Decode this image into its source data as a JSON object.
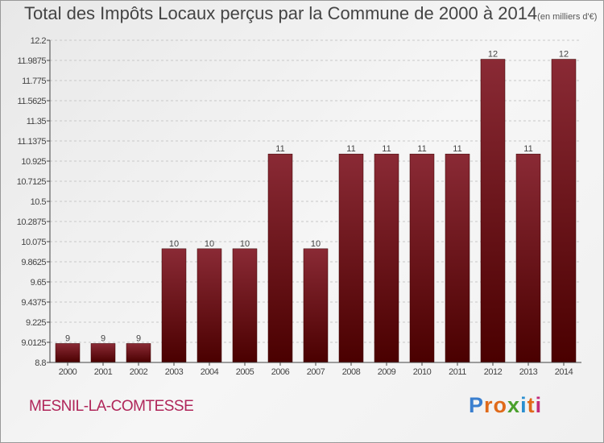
{
  "title": "Total des Impôts Locaux perçus par la Commune de 2000 à 2014",
  "title_unit": "(en milliers d'€)",
  "commune": "MESNIL-LA-COMTESSE",
  "logo": {
    "letters": [
      "P",
      "r",
      "o",
      "x",
      "i",
      "t",
      "i"
    ],
    "colors": [
      "#3a7fcf",
      "#e06a1a",
      "#e06a1a",
      "#4aa02c",
      "#2a8fd0",
      "#e06a1a",
      "#c22a7a"
    ]
  },
  "colors": {
    "bar_top": "#8a2a35",
    "bar_bottom": "#4a0000",
    "grid": "#c8c8c8",
    "axis": "#444444"
  },
  "chart_data": {
    "type": "bar",
    "title": "Total des Impôts Locaux perçus par la Commune de 2000 à 2014",
    "xlabel": "",
    "ylabel": "",
    "categories": [
      "2000",
      "2001",
      "2002",
      "2003",
      "2004",
      "2005",
      "2006",
      "2007",
      "2008",
      "2009",
      "2010",
      "2011",
      "2012",
      "2013",
      "2014"
    ],
    "values": [
      9,
      9,
      9,
      10,
      10,
      10,
      11,
      10,
      11,
      11,
      11,
      11,
      12,
      11,
      12
    ],
    "value_labels": [
      "9",
      "9",
      "9",
      "10",
      "10",
      "10",
      "11",
      "10",
      "11",
      "11",
      "11",
      "11",
      "12",
      "11",
      "12"
    ],
    "ylim": [
      8.8,
      12.2
    ],
    "yticks": [
      "8.8",
      "9.0125",
      "9.225",
      "9.4375",
      "9.65",
      "9.8625",
      "10.075",
      "10.2875",
      "10.5",
      "10.7125",
      "10.925",
      "11.1375",
      "11.35",
      "11.5625",
      "11.775",
      "11.9875",
      "12.2"
    ],
    "grid": true
  }
}
